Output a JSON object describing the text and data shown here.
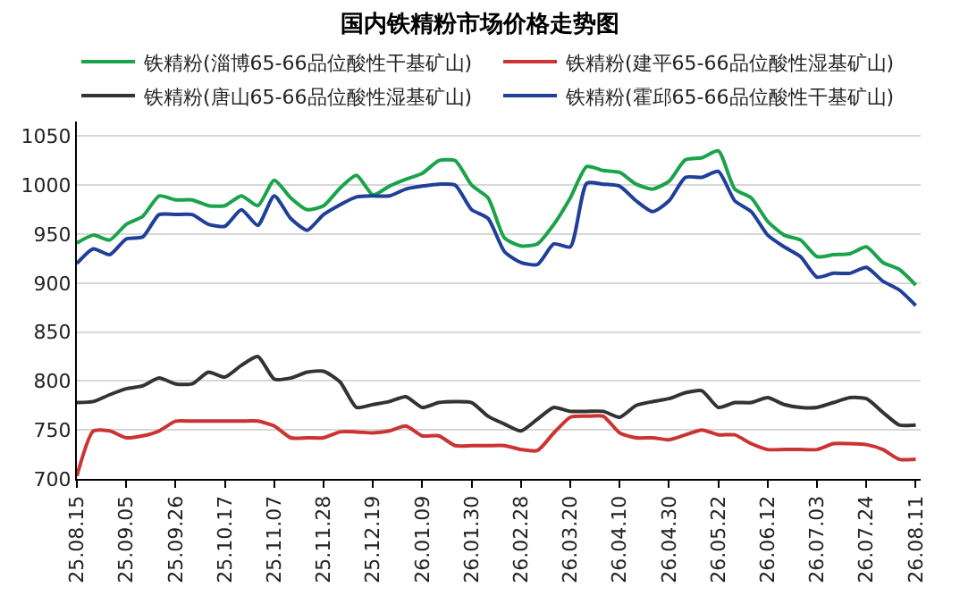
{
  "chart_data": {
    "type": "line",
    "title": "国内铁精粉市场价格走势图",
    "categories": [
      "25.08.15",
      null,
      null,
      "25.09.05",
      null,
      null,
      "25.09.26",
      null,
      null,
      "25.10.17",
      null,
      null,
      "25.11.07",
      null,
      null,
      "25.11.28",
      null,
      null,
      "25.12.19",
      null,
      null,
      "26.01.09",
      null,
      null,
      "26.01.30",
      null,
      null,
      "26.02.28",
      null,
      null,
      "26.03.20",
      null,
      null,
      "26.04.10",
      null,
      null,
      "26.04.30",
      null,
      null,
      "26.05.22",
      null,
      null,
      "26.06.12",
      null,
      null,
      "26.07.03",
      null,
      null,
      "26.07.24",
      null,
      null,
      "26.08.11"
    ],
    "series": [
      {
        "name": "铁精粉(淄博65-66品位酸性干基矿山)",
        "color": "#1aa34a",
        "values": [
          941,
          949,
          944,
          960,
          968,
          989,
          985,
          985,
          979,
          979,
          989,
          979,
          1005,
          987,
          975,
          979,
          997,
          1010,
          990,
          999,
          1006,
          1012,
          1025,
          1025,
          1000,
          987,
          946,
          938,
          940,
          960,
          987,
          1019,
          1015,
          1013,
          1001,
          996,
          1004,
          1026,
          1028,
          1035,
          996,
          987,
          963,
          949,
          944,
          927,
          929,
          930,
          937,
          921,
          914,
          898
        ]
      },
      {
        "name": "铁精粉(建平65-66品位酸性湿基矿山)",
        "color": "#cc3333",
        "values": [
          703,
          749,
          749,
          742,
          744,
          749,
          759,
          759,
          759,
          759,
          759,
          759,
          754,
          742,
          742,
          742,
          748,
          748,
          747,
          749,
          754,
          744,
          744,
          734,
          734,
          734,
          734,
          730,
          729,
          747,
          763,
          764,
          764,
          747,
          742,
          742,
          740,
          745,
          750,
          745,
          745,
          736,
          730,
          730,
          730,
          730,
          736,
          736,
          735,
          730,
          720,
          720
        ]
      },
      {
        "name": "铁精粉(唐山65-66品位酸性湿基矿山)",
        "color": "#333333",
        "values": [
          778,
          779,
          786,
          792,
          795,
          803,
          797,
          797,
          809,
          804,
          816,
          825,
          802,
          803,
          809,
          810,
          799,
          773,
          776,
          779,
          784,
          773,
          778,
          779,
          778,
          764,
          756,
          749,
          761,
          773,
          769,
          769,
          769,
          763,
          775,
          779,
          782,
          788,
          790,
          773,
          778,
          778,
          783,
          776,
          773,
          773,
          778,
          783,
          782,
          768,
          755,
          755
        ]
      },
      {
        "name": "铁精粉(霍邱65-66品位酸性干基矿山)",
        "color": "#1f3f99",
        "values": [
          920,
          935,
          929,
          945,
          947,
          970,
          970,
          970,
          960,
          958,
          975,
          959,
          989,
          966,
          954,
          970,
          980,
          988,
          989,
          989,
          996,
          999,
          1001,
          1000,
          975,
          966,
          932,
          921,
          919,
          940,
          937,
          1002,
          1001,
          999,
          984,
          973,
          984,
          1008,
          1008,
          1014,
          984,
          973,
          949,
          937,
          927,
          906,
          910,
          910,
          916,
          902,
          893,
          877
        ]
      }
    ],
    "ylim": [
      700,
      1065
    ],
    "yticks": [
      700,
      750,
      800,
      850,
      900,
      950,
      1000,
      1050
    ],
    "grid": "y",
    "legend": "top",
    "marker": "none",
    "line_style": "solid"
  }
}
